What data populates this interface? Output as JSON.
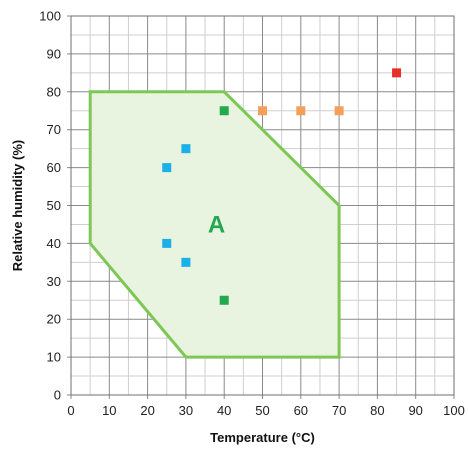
{
  "chart_data": {
    "type": "scatter",
    "title": "",
    "xlabel": "Temperature (°C)",
    "ylabel": "Relative humidity (%)",
    "xlim": [
      0,
      100
    ],
    "ylim": [
      0,
      100
    ],
    "x_major_ticks": [
      0,
      10,
      20,
      30,
      40,
      50,
      60,
      70,
      80,
      90,
      100
    ],
    "y_major_ticks": [
      0,
      10,
      20,
      30,
      40,
      50,
      60,
      70,
      80,
      90,
      100
    ],
    "x_tick_labels": [
      "0",
      "10",
      "20",
      "30",
      "40",
      "50",
      "60",
      "70",
      "80",
      "90",
      "100"
    ],
    "y_tick_labels": [
      "0",
      "10",
      "20",
      "30",
      "40",
      "50",
      "60",
      "70",
      "80",
      "90",
      "100"
    ],
    "grid": true,
    "minor_grid_step": 5,
    "legend": "none",
    "region": {
      "label": "A",
      "polygon": [
        [
          5,
          80
        ],
        [
          40,
          80
        ],
        [
          70,
          50
        ],
        [
          70,
          10
        ],
        [
          30,
          10
        ],
        [
          5,
          40
        ]
      ],
      "fill_color": "#e8f3e0",
      "stroke_color": "#7dc855",
      "label_position": [
        38,
        45
      ]
    },
    "series": [
      {
        "color": "#1bb0e8",
        "points": [
          [
            25,
            60
          ],
          [
            30,
            65
          ],
          [
            25,
            40
          ],
          [
            30,
            35
          ]
        ]
      },
      {
        "color": "#22a84e",
        "points": [
          [
            40,
            75
          ],
          [
            40,
            25
          ]
        ]
      },
      {
        "color": "#f5a05a",
        "points": [
          [
            50,
            75
          ],
          [
            60,
            75
          ],
          [
            70,
            75
          ]
        ]
      },
      {
        "color": "#e8302b",
        "points": [
          [
            85,
            85
          ]
        ]
      }
    ]
  }
}
